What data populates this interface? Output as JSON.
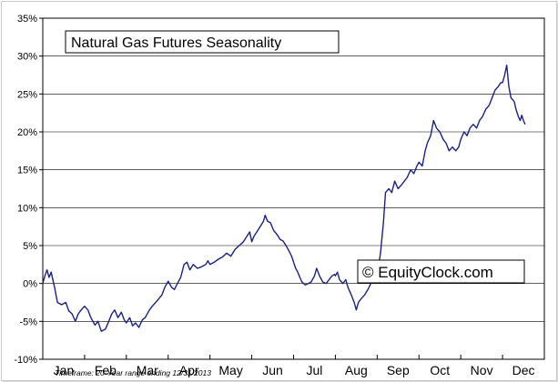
{
  "chart_data": {
    "type": "line",
    "title": "Natural Gas Futures Seasonality",
    "watermark": "© EquityClock.com",
    "footnote": "Timeframe: 20-Year range ending 12/31/2013",
    "xlabel": "",
    "ylabel": "",
    "ylim": [
      -10,
      35
    ],
    "y_ticks": [
      -10,
      -5,
      0,
      5,
      10,
      15,
      20,
      25,
      30,
      35
    ],
    "y_tick_labels": [
      "-10%",
      "-5%",
      "0%",
      "5%",
      "10%",
      "15%",
      "20%",
      "25%",
      "30%",
      "35%"
    ],
    "month_labels": [
      "Jan",
      "Feb",
      "Mar",
      "Apr",
      "May",
      "Jun",
      "Jul",
      "Aug",
      "Sep",
      "Oct",
      "Nov",
      "Dec"
    ],
    "grid": true,
    "line_color": "#1a237e",
    "series": [
      {
        "points": [
          [
            0.0,
            0.0
          ],
          [
            0.05,
            1.0
          ],
          [
            0.1,
            1.8
          ],
          [
            0.15,
            0.8
          ],
          [
            0.2,
            1.5
          ],
          [
            0.28,
            -0.5
          ],
          [
            0.35,
            -2.5
          ],
          [
            0.45,
            -2.8
          ],
          [
            0.55,
            -2.5
          ],
          [
            0.62,
            -3.6
          ],
          [
            0.7,
            -4.0
          ],
          [
            0.78,
            -5.0
          ],
          [
            0.85,
            -4.0
          ],
          [
            0.92,
            -3.5
          ],
          [
            1.0,
            -3.0
          ],
          [
            1.08,
            -3.5
          ],
          [
            1.15,
            -4.5
          ],
          [
            1.25,
            -5.5
          ],
          [
            1.32,
            -5.0
          ],
          [
            1.4,
            -6.3
          ],
          [
            1.5,
            -6.0
          ],
          [
            1.58,
            -5.0
          ],
          [
            1.65,
            -4.0
          ],
          [
            1.72,
            -3.5
          ],
          [
            1.8,
            -4.5
          ],
          [
            1.88,
            -3.8
          ],
          [
            1.95,
            -4.8
          ],
          [
            2.0,
            -5.2
          ],
          [
            2.08,
            -4.5
          ],
          [
            2.15,
            -5.6
          ],
          [
            2.22,
            -5.2
          ],
          [
            2.3,
            -5.8
          ],
          [
            2.38,
            -4.8
          ],
          [
            2.45,
            -4.5
          ],
          [
            2.55,
            -3.5
          ],
          [
            2.62,
            -3.0
          ],
          [
            2.7,
            -2.5
          ],
          [
            2.78,
            -2.0
          ],
          [
            2.85,
            -1.5
          ],
          [
            2.92,
            -0.5
          ],
          [
            3.0,
            0.3
          ],
          [
            3.08,
            -0.5
          ],
          [
            3.15,
            -0.8
          ],
          [
            3.22,
            0.0
          ],
          [
            3.3,
            0.8
          ],
          [
            3.38,
            2.5
          ],
          [
            3.45,
            2.8
          ],
          [
            3.52,
            1.8
          ],
          [
            3.6,
            2.5
          ],
          [
            3.7,
            2.0
          ],
          [
            3.8,
            2.2
          ],
          [
            3.9,
            2.5
          ],
          [
            3.95,
            3.0
          ],
          [
            4.0,
            2.5
          ],
          [
            4.1,
            2.8
          ],
          [
            4.2,
            3.2
          ],
          [
            4.3,
            3.5
          ],
          [
            4.4,
            4.0
          ],
          [
            4.5,
            3.6
          ],
          [
            4.6,
            4.5
          ],
          [
            4.7,
            5.0
          ],
          [
            4.8,
            5.5
          ],
          [
            4.88,
            6.2
          ],
          [
            4.95,
            6.8
          ],
          [
            5.0,
            5.5
          ],
          [
            5.05,
            6.2
          ],
          [
            5.12,
            6.8
          ],
          [
            5.2,
            7.5
          ],
          [
            5.28,
            8.2
          ],
          [
            5.32,
            9.0
          ],
          [
            5.38,
            8.2
          ],
          [
            5.45,
            8.0
          ],
          [
            5.52,
            7.0
          ],
          [
            5.6,
            6.5
          ],
          [
            5.68,
            5.8
          ],
          [
            5.75,
            5.6
          ],
          [
            5.82,
            5.0
          ],
          [
            5.9,
            4.2
          ],
          [
            5.96,
            3.5
          ],
          [
            6.0,
            2.8
          ],
          [
            6.05,
            2.0
          ],
          [
            6.1,
            1.5
          ],
          [
            6.15,
            0.8
          ],
          [
            6.2,
            0.2
          ],
          [
            6.28,
            -0.2
          ],
          [
            6.35,
            0.0
          ],
          [
            6.42,
            0.2
          ],
          [
            6.5,
            1.0
          ],
          [
            6.55,
            2.0
          ],
          [
            6.62,
            1.0
          ],
          [
            6.7,
            0.2
          ],
          [
            6.78,
            0.0
          ],
          [
            6.85,
            0.5
          ],
          [
            6.92,
            1.0
          ],
          [
            6.98,
            1.2
          ],
          [
            7.0,
            1.0
          ],
          [
            7.05,
            1.5
          ],
          [
            7.1,
            0.5
          ],
          [
            7.18,
            0.0
          ],
          [
            7.25,
            0.5
          ],
          [
            7.3,
            -0.5
          ],
          [
            7.38,
            -1.5
          ],
          [
            7.45,
            -2.5
          ],
          [
            7.5,
            -3.5
          ],
          [
            7.55,
            -2.5
          ],
          [
            7.62,
            -2.0
          ],
          [
            7.7,
            -1.5
          ],
          [
            7.78,
            -0.8
          ],
          [
            7.85,
            0.0
          ],
          [
            7.92,
            0.5
          ],
          [
            8.0,
            1.0
          ],
          [
            8.08,
            4.0
          ],
          [
            8.15,
            8.0
          ],
          [
            8.2,
            12.0
          ],
          [
            8.28,
            12.5
          ],
          [
            8.35,
            12.0
          ],
          [
            8.42,
            13.5
          ],
          [
            8.5,
            12.5
          ],
          [
            8.58,
            13.0
          ],
          [
            8.65,
            13.5
          ],
          [
            8.72,
            14.0
          ],
          [
            8.8,
            15.0
          ],
          [
            8.88,
            14.5
          ],
          [
            8.95,
            15.5
          ],
          [
            9.0,
            16.0
          ],
          [
            9.08,
            15.5
          ],
          [
            9.15,
            17.5
          ],
          [
            9.2,
            18.5
          ],
          [
            9.28,
            19.5
          ],
          [
            9.35,
            21.5
          ],
          [
            9.42,
            20.5
          ],
          [
            9.5,
            20.0
          ],
          [
            9.58,
            19.0
          ],
          [
            9.65,
            18.5
          ],
          [
            9.72,
            17.5
          ],
          [
            9.8,
            18.0
          ],
          [
            9.88,
            17.5
          ],
          [
            9.95,
            18.0
          ],
          [
            10.0,
            19.0
          ],
          [
            10.08,
            20.0
          ],
          [
            10.15,
            19.5
          ],
          [
            10.22,
            20.5
          ],
          [
            10.3,
            21.0
          ],
          [
            10.38,
            20.5
          ],
          [
            10.45,
            21.5
          ],
          [
            10.52,
            22.0
          ],
          [
            10.6,
            23.0
          ],
          [
            10.68,
            23.5
          ],
          [
            10.75,
            24.5
          ],
          [
            10.82,
            25.5
          ],
          [
            10.9,
            26.0
          ],
          [
            10.96,
            26.5
          ],
          [
            11.0,
            26.5
          ],
          [
            11.05,
            27.5
          ],
          [
            11.1,
            28.8
          ],
          [
            11.15,
            26.0
          ],
          [
            11.2,
            24.5
          ],
          [
            11.28,
            24.0
          ],
          [
            11.32,
            23.0
          ],
          [
            11.38,
            22.0
          ],
          [
            11.42,
            21.5
          ],
          [
            11.46,
            22.2
          ],
          [
            11.5,
            21.5
          ],
          [
            11.54,
            21.0
          ]
        ]
      }
    ]
  }
}
